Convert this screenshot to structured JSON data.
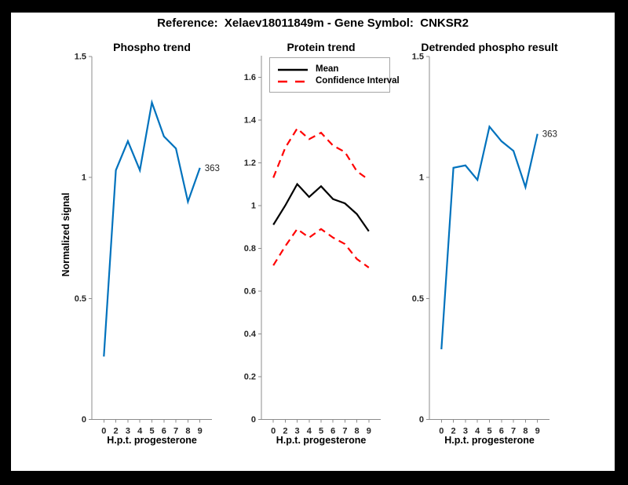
{
  "figure": {
    "title": "Reference:  Xelaev18011849m - Gene Symbol:  CNKSR2",
    "background_color": "#ffffff",
    "frame_color": "#000000",
    "axis_color": "#8c8c8c",
    "tick_label_color": "#262626",
    "accent_blue": "#0072bd",
    "accent_red": "#ff0000"
  },
  "chart_data": [
    {
      "type": "line",
      "title": "Phospho trend",
      "xlabel": "H.p.t. progesterone",
      "ylabel": "Normalized signal",
      "categories": [
        "0",
        "2",
        "3",
        "4",
        "5",
        "6",
        "7",
        "8",
        "9"
      ],
      "yticks": [
        0,
        0.5,
        1,
        1.5
      ],
      "ylim": [
        0,
        1.5
      ],
      "grid": false,
      "series": [
        {
          "name": "Phospho trend",
          "color": "#0072bd",
          "line": "solid",
          "values": [
            0.26,
            1.03,
            1.15,
            1.03,
            1.31,
            1.17,
            1.12,
            0.9,
            1.04
          ]
        }
      ],
      "end_label": "363"
    },
    {
      "type": "line",
      "title": "Protein trend",
      "xlabel": "H.p.t. progesterone",
      "ylabel": "",
      "categories": [
        "0",
        "2",
        "3",
        "4",
        "5",
        "6",
        "7",
        "8",
        "9"
      ],
      "yticks": [
        0,
        0.2,
        0.4,
        0.6,
        0.8,
        1,
        1.2,
        1.4,
        1.6
      ],
      "ylim": [
        0,
        1.7
      ],
      "grid": false,
      "legend_position": "top-left-inside",
      "series": [
        {
          "name": "Mean",
          "color": "#000000",
          "line": "solid",
          "values": [
            0.91,
            1.0,
            1.1,
            1.04,
            1.09,
            1.03,
            1.01,
            0.96,
            0.88
          ]
        },
        {
          "name": "Confidence Interval",
          "color": "#ff0000",
          "line": "dashed",
          "upper": [
            1.13,
            1.27,
            1.36,
            1.31,
            1.34,
            1.28,
            1.25,
            1.16,
            1.12
          ],
          "lower": [
            0.72,
            0.81,
            0.89,
            0.85,
            0.89,
            0.85,
            0.82,
            0.75,
            0.71
          ]
        }
      ]
    },
    {
      "type": "line",
      "title": "Detrended phospho result",
      "xlabel": "H.p.t. progesterone",
      "ylabel": "",
      "categories": [
        "0",
        "2",
        "3",
        "4",
        "5",
        "6",
        "7",
        "8",
        "9"
      ],
      "yticks": [
        0,
        0.5,
        1,
        1.5
      ],
      "ylim": [
        0,
        1.5
      ],
      "grid": false,
      "series": [
        {
          "name": "Detrended phospho",
          "color": "#0072bd",
          "line": "solid",
          "values": [
            0.29,
            1.04,
            1.05,
            0.99,
            1.21,
            1.15,
            1.11,
            0.96,
            1.18
          ]
        }
      ],
      "end_label": "363"
    }
  ]
}
